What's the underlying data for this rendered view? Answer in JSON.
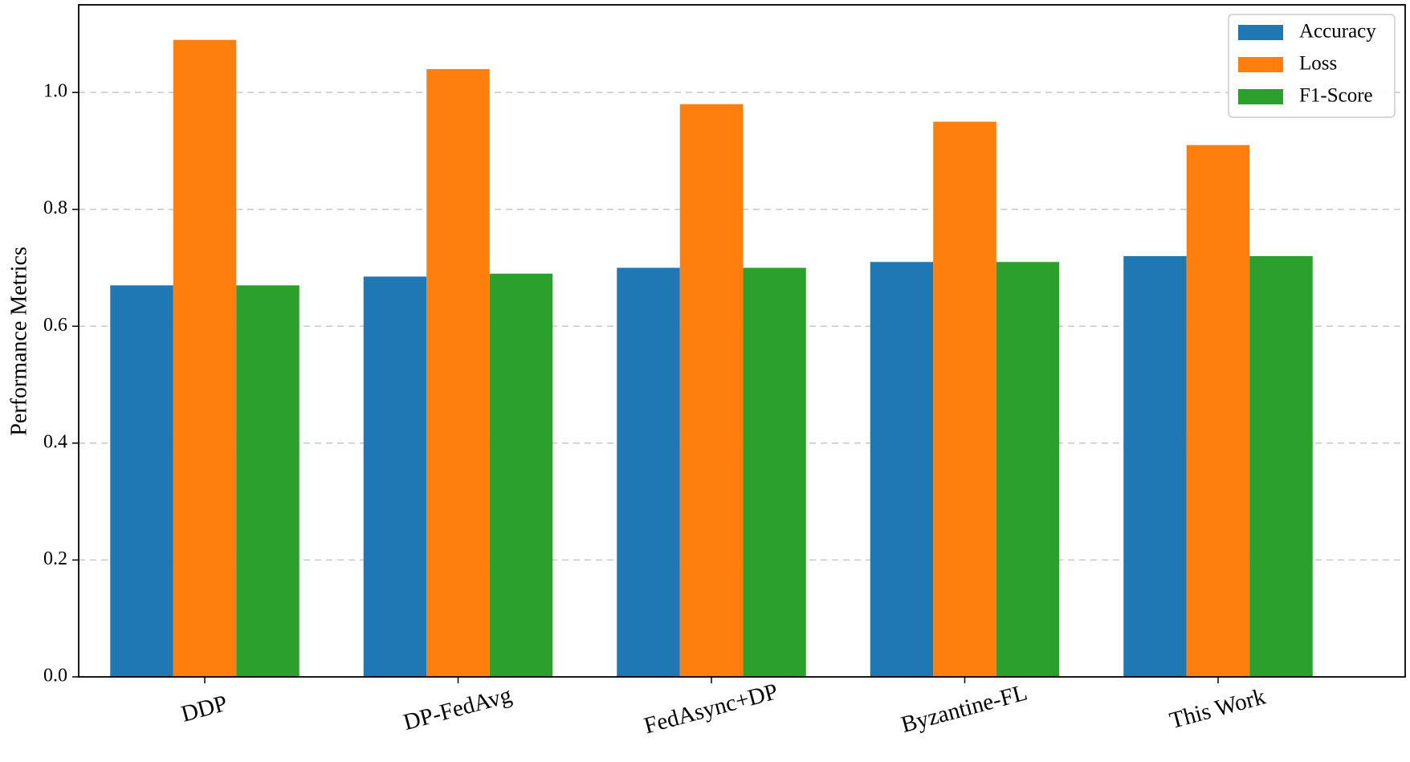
{
  "chart_data": {
    "type": "bar",
    "title": "",
    "xlabel": "",
    "ylabel": "Performance Metrics",
    "categories": [
      "DDP",
      "DP-FedAvg",
      "FedAsync+DP",
      "Byzantine-FL",
      "This Work"
    ],
    "series": [
      {
        "name": "Accuracy",
        "color": "#1f77b4",
        "values": [
          0.67,
          0.685,
          0.7,
          0.71,
          0.72
        ]
      },
      {
        "name": "Loss",
        "color": "#ff7f0e",
        "values": [
          1.09,
          1.04,
          0.98,
          0.95,
          0.91
        ]
      },
      {
        "name": "F1-Score",
        "color": "#2ca02c",
        "values": [
          0.67,
          0.69,
          0.7,
          0.71,
          0.72
        ]
      }
    ],
    "ylim": [
      0,
      1.15
    ],
    "yticks": [
      "0.0",
      "0.2",
      "0.4",
      "0.6",
      "0.8",
      "1.0"
    ],
    "grid": "y-dashed",
    "legend_position": "top-right"
  }
}
